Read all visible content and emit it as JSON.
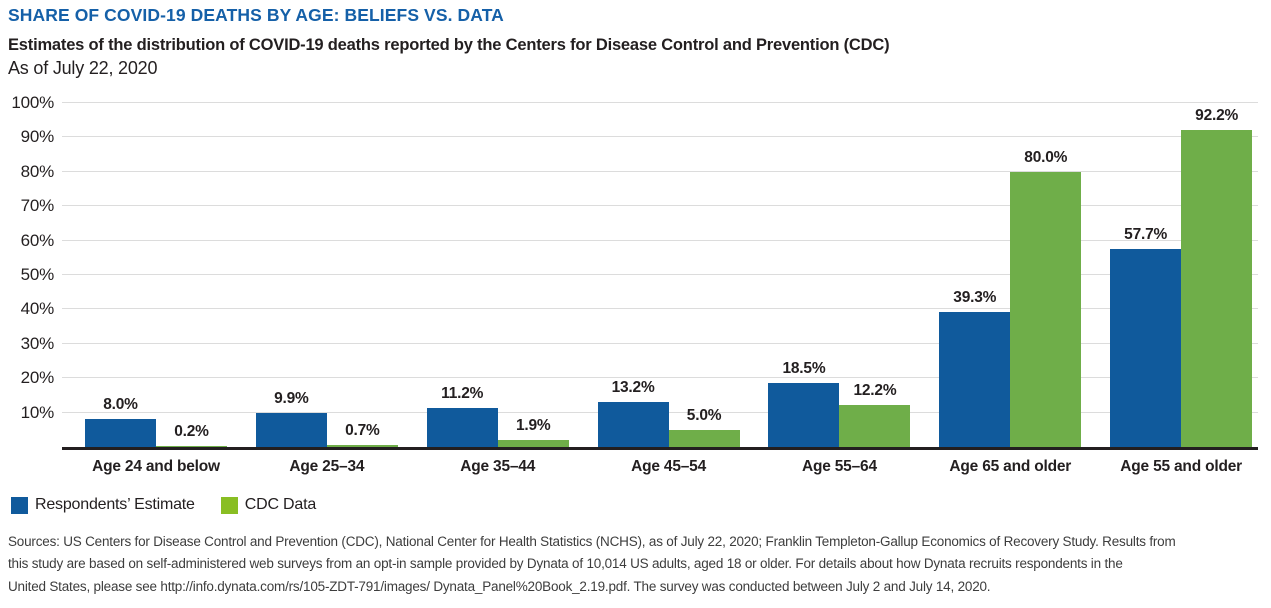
{
  "header": {
    "title": "SHARE OF COVID-19 DEATHS BY AGE: BELIEFS VS. DATA",
    "subtitle": "Estimates of the distribution of COVID-19 deaths reported by the Centers for Disease Control and Prevention (CDC)",
    "as_of": "As of July 22, 2020"
  },
  "chart_data": {
    "type": "bar",
    "title": "SHARE OF COVID-19 DEATHS BY AGE: BELIEFS VS. DATA",
    "categories": [
      "Age 24 and below",
      "Age 25–34",
      "Age 35–44",
      "Age 45–54",
      "Age 55–64",
      "Age 65 and older",
      "Age 55 and older"
    ],
    "series": [
      {
        "name": "Respondents’ Estimate",
        "color": "#105A9C",
        "values": [
          8.0,
          9.9,
          11.2,
          13.2,
          18.5,
          39.3,
          57.7
        ]
      },
      {
        "name": "CDC Data",
        "color": "#6FAE49",
        "values": [
          0.2,
          0.7,
          1.9,
          5.0,
          12.2,
          80.0,
          92.2
        ]
      }
    ],
    "value_labels": [
      [
        "8.0%",
        "9.9%",
        "11.2%",
        "13.2%",
        "18.5%",
        "39.3%",
        "57.7%"
      ],
      [
        "0.2%",
        "0.7%",
        "1.9%",
        "5.0%",
        "12.2%",
        "80.0%",
        "92.2%"
      ]
    ],
    "xlabel": "",
    "ylabel": "",
    "ylim": [
      0,
      100
    ],
    "yticks": [
      "10%",
      "20%",
      "30%",
      "40%",
      "50%",
      "60%",
      "70%",
      "80%",
      "90%",
      "100%"
    ],
    "grid": true,
    "legend_position": "bottom-left"
  },
  "legend": {
    "items": [
      {
        "label": "Respondents’ Estimate",
        "color": "#105A9C"
      },
      {
        "label": "CDC Data",
        "color": "#89BE23"
      }
    ]
  },
  "sources": {
    "lines": [
      "Sources: US Centers for Disease Control and Prevention (CDC), National Center for Health Statistics (NCHS), as of July 22, 2020; Franklin Templeton-Gallup Economics of Recovery Study. Results from",
      "this study are based on self-administered web surveys from an opt-in sample provided by Dynata of 10,014 US adults, aged 18 or older. For details about how Dynata recruits respondents in the",
      "United States, please see http://info.dynata.com/rs/105-ZDT-791/images/ Dynata_Panel%20Book_2.19.pdf. The survey was conducted between July 2 and July 14, 2020."
    ]
  },
  "colors": {
    "title": "#1560A8",
    "respondents_bar": "#105A9C",
    "cdc_bar": "#6FAE49",
    "legend_cdc_swatch": "#89BE23",
    "grid": "#DCDCDC",
    "axis": "#231F20",
    "text": "#231F20",
    "source_text": "#3D3D3D"
  }
}
